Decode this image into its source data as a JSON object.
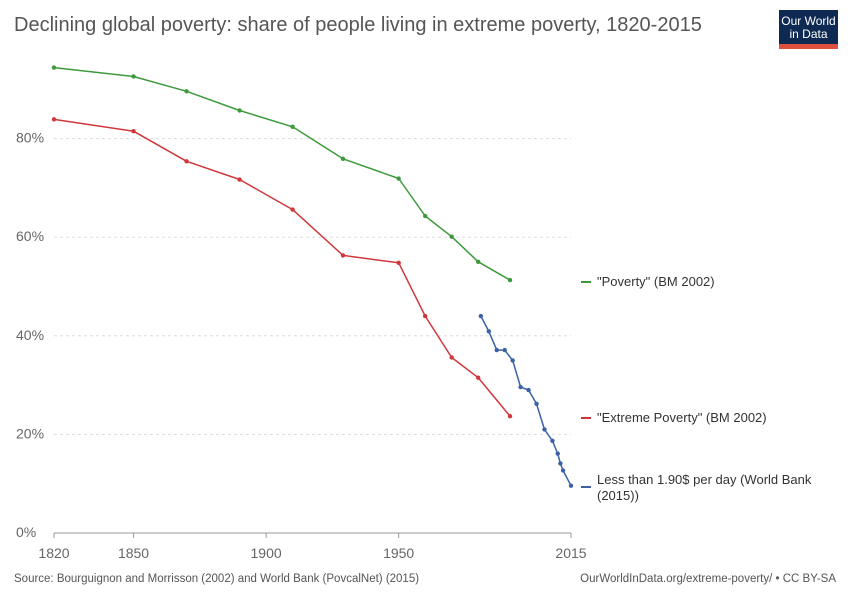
{
  "title": "Declining global poverty: share of people living in extreme poverty, 1820-2015",
  "logo": {
    "line1": "Our World",
    "line2": "in Data",
    "colors": {
      "bg": "#0f2a52",
      "bar": "#e0503f"
    }
  },
  "footer": {
    "source": "Source: Bourguignon and Morrisson (2002) and World Bank (PovcalNet) (2015)",
    "url": "OurWorldInData.org/extreme-poverty/ • CC BY-SA"
  },
  "chart_data": {
    "type": "line",
    "title": "Declining global poverty: share of people living in extreme poverty, 1820-2015",
    "xlabel": "",
    "ylabel": "",
    "xlim": [
      1820,
      2015
    ],
    "ylim": [
      0,
      100
    ],
    "x_ticks": [
      1820,
      1850,
      1900,
      1950,
      2015
    ],
    "y_ticks": [
      {
        "value": 0,
        "label": "0%"
      },
      {
        "value": 20,
        "label": "20%"
      },
      {
        "value": 40,
        "label": "40%"
      },
      {
        "value": 60,
        "label": "60%"
      },
      {
        "value": 80,
        "label": "80%"
      }
    ],
    "grid": "horizontal-dashed",
    "legend": "right, at line ends",
    "series": [
      {
        "name": "\"Poverty\" (BM 2002)",
        "color": "#3c9a3c",
        "points": [
          [
            1820,
            94.4
          ],
          [
            1850,
            92.6
          ],
          [
            1870,
            89.6
          ],
          [
            1890,
            85.7
          ],
          [
            1910,
            82.4
          ],
          [
            1929,
            75.9
          ],
          [
            1950,
            71.9
          ],
          [
            1960,
            64.3
          ],
          [
            1970,
            60.1
          ],
          [
            1980,
            55.0
          ],
          [
            1992,
            51.3
          ]
        ]
      },
      {
        "name": "\"Extreme Poverty\" (BM 2002)",
        "color": "#d0373a",
        "points": [
          [
            1820,
            83.9
          ],
          [
            1850,
            81.5
          ],
          [
            1870,
            75.4
          ],
          [
            1890,
            71.7
          ],
          [
            1910,
            65.6
          ],
          [
            1929,
            56.3
          ],
          [
            1950,
            54.8
          ],
          [
            1960,
            44.0
          ],
          [
            1970,
            35.6
          ],
          [
            1980,
            31.5
          ],
          [
            1992,
            23.7
          ]
        ]
      },
      {
        "name": "Less than 1.90$ per day (World Bank (2015))",
        "color": "#3b62a8",
        "points": [
          [
            1981,
            44.0
          ],
          [
            1984,
            40.9
          ],
          [
            1987,
            37.1
          ],
          [
            1990,
            37.1
          ],
          [
            1993,
            35.0
          ],
          [
            1996,
            29.6
          ],
          [
            1999,
            29.0
          ],
          [
            2002,
            26.2
          ],
          [
            2005,
            21.0
          ],
          [
            2008,
            18.7
          ],
          [
            2010,
            16.1
          ],
          [
            2011,
            14.1
          ],
          [
            2012,
            12.7
          ],
          [
            2015,
            9.6
          ]
        ]
      }
    ]
  }
}
